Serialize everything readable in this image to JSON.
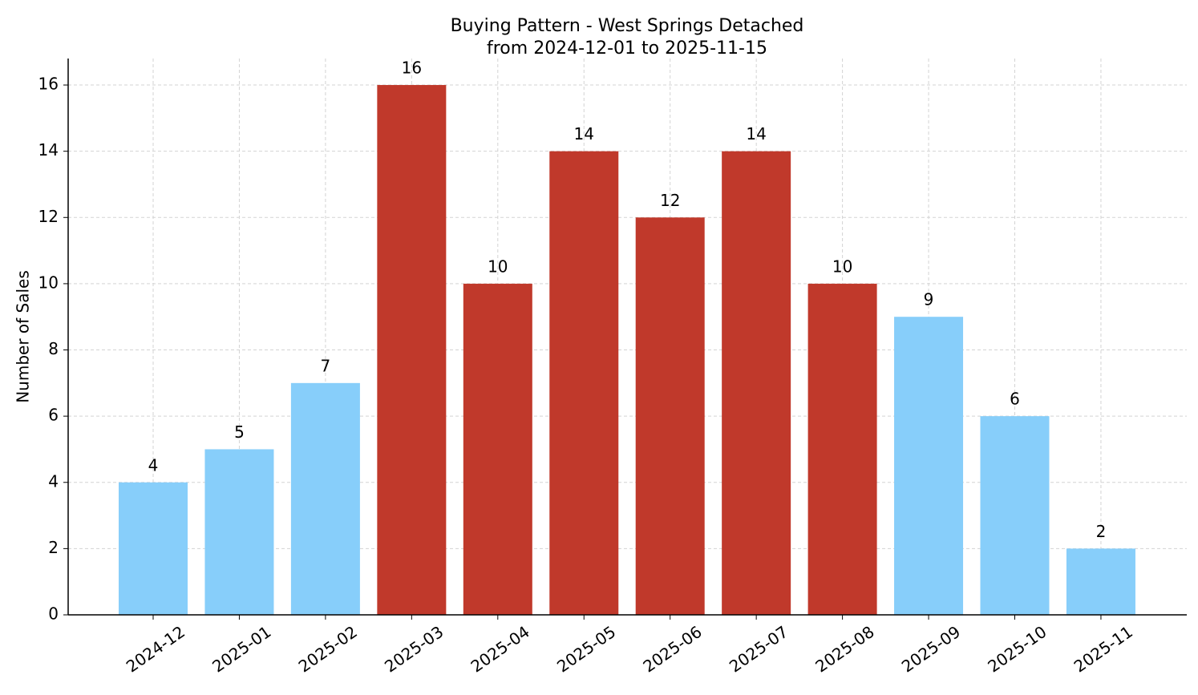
{
  "chart_data": {
    "type": "bar",
    "title": "Buying Pattern - West Springs Detached",
    "subtitle": "from 2024-12-01 to 2025-11-15",
    "y_label": "Number of Sales",
    "categories": [
      "2024-12",
      "2025-01",
      "2025-02",
      "2025-03",
      "2025-04",
      "2025-05",
      "2025-06",
      "2025-07",
      "2025-08",
      "2025-09",
      "2025-10",
      "2025-11"
    ],
    "values": [
      4,
      5,
      7,
      16,
      10,
      14,
      12,
      14,
      10,
      9,
      6,
      2
    ],
    "colors": [
      "#87cefa",
      "#87cefa",
      "#87cefa",
      "#c0392b",
      "#c0392b",
      "#c0392b",
      "#c0392b",
      "#c0392b",
      "#c0392b",
      "#87cefa",
      "#87cefa",
      "#87cefa"
    ],
    "ylim": [
      0,
      16.8
    ],
    "yticks": [
      0,
      2,
      4,
      6,
      8,
      10,
      12,
      14,
      16
    ],
    "grid": true
  }
}
